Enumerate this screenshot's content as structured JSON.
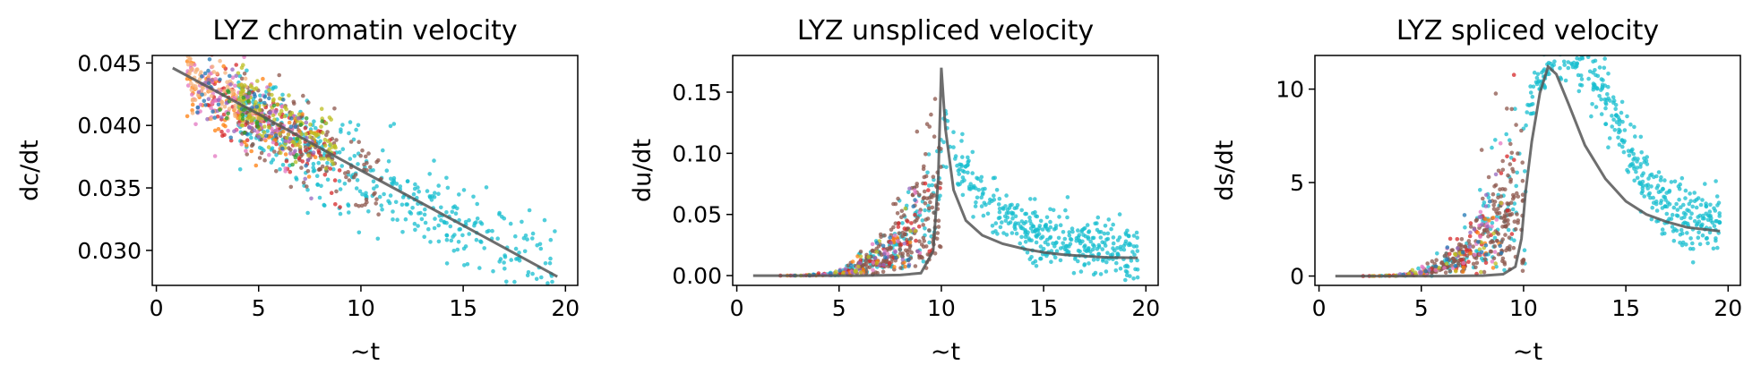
{
  "chart_data": [
    {
      "type": "scatter",
      "title": "LYZ chromatin velocity",
      "xlabel": "~t",
      "ylabel": "dc/dt",
      "xlim": [
        -0.2,
        20.6
      ],
      "ylim": [
        0.0272,
        0.0456
      ],
      "xticks": [
        "0",
        "5",
        "10",
        "15",
        "20"
      ],
      "yticks": [
        "0.030",
        "0.035",
        "0.040",
        "0.045"
      ],
      "grid": false,
      "fit_line": [
        [
          0.8,
          0.0446
        ],
        [
          5,
          0.0409
        ],
        [
          10,
          0.0364
        ],
        [
          15,
          0.032
        ],
        [
          19.6,
          0.0279
        ]
      ],
      "scatter_series": [
        {
          "color": "#17becf",
          "x_range": [
            4,
            19.5
          ],
          "y_center_slope": -0.00089,
          "y_center_intercept": 0.0451,
          "spread": 0.0018,
          "count": 420
        },
        {
          "color": "#8c564b",
          "x_range": [
            4,
            11
          ],
          "y_center_slope": -0.00085,
          "y_center_intercept": 0.0447,
          "spread": 0.0016,
          "count": 170
        },
        {
          "color": "#d62728",
          "x_range": [
            2.5,
            9
          ],
          "y_center_slope": -0.00085,
          "y_center_intercept": 0.0447,
          "spread": 0.0017,
          "count": 90
        },
        {
          "color": "#ff7f0e",
          "x_range": [
            1.5,
            8
          ],
          "y_center_slope": -0.00085,
          "y_center_intercept": 0.0448,
          "spread": 0.0016,
          "count": 70
        },
        {
          "color": "#e377c2",
          "x_range": [
            1.5,
            7
          ],
          "y_center_slope": -0.00085,
          "y_center_intercept": 0.045,
          "spread": 0.0013,
          "count": 110
        },
        {
          "color": "#f5b27a",
          "x_range": [
            1.5,
            5
          ],
          "y_center_slope": -0.00085,
          "y_center_intercept": 0.0452,
          "spread": 0.0009,
          "count": 90
        },
        {
          "color": "#bcbd22",
          "x_range": [
            4,
            9
          ],
          "y_center_slope": -0.00085,
          "y_center_intercept": 0.0455,
          "spread": 0.0012,
          "count": 140
        },
        {
          "color": "#9467bd",
          "x_range": [
            2,
            8
          ],
          "y_center_slope": -0.00085,
          "y_center_intercept": 0.0448,
          "spread": 0.0016,
          "count": 45
        },
        {
          "color": "#1f77b4",
          "x_range": [
            2,
            8
          ],
          "y_center_slope": -0.00085,
          "y_center_intercept": 0.0448,
          "spread": 0.0016,
          "count": 35
        },
        {
          "color": "#2ca02c",
          "x_range": [
            3,
            9
          ],
          "y_center_slope": -0.00085,
          "y_center_intercept": 0.0448,
          "spread": 0.0015,
          "count": 30
        }
      ]
    },
    {
      "type": "scatter",
      "title": "LYZ unspliced velocity",
      "xlabel": "~t",
      "ylabel": "du/dt",
      "xlim": [
        -0.2,
        20.6
      ],
      "ylim": [
        -0.008,
        0.18
      ],
      "xticks": [
        "0",
        "5",
        "10",
        "15",
        "20"
      ],
      "yticks": [
        "0.00",
        "0.05",
        "0.10",
        "0.15"
      ],
      "grid": false,
      "fit_line": [
        [
          0.8,
          0.0
        ],
        [
          3,
          0.0
        ],
        [
          6,
          0.0
        ],
        [
          8,
          0.0005
        ],
        [
          9,
          0.002
        ],
        [
          9.6,
          0.02
        ],
        [
          9.85,
          0.08
        ],
        [
          10.0,
          0.17
        ],
        [
          10.2,
          0.12
        ],
        [
          10.6,
          0.07
        ],
        [
          11.2,
          0.045
        ],
        [
          12,
          0.033
        ],
        [
          13,
          0.026
        ],
        [
          14,
          0.022
        ],
        [
          15,
          0.019
        ],
        [
          16,
          0.017
        ],
        [
          17,
          0.016
        ],
        [
          18,
          0.015
        ],
        [
          19.6,
          0.0145
        ]
      ],
      "scatter_series": [
        {
          "color": "#17becf",
          "x_range": [
            3,
            19.6
          ],
          "count": 520
        },
        {
          "color": "#8c564b",
          "x_range": [
            5,
            10
          ],
          "count": 220
        },
        {
          "color": "#d62728",
          "x_range": [
            2,
            10
          ],
          "count": 40
        },
        {
          "color": "#ff7f0e",
          "x_range": [
            2,
            9
          ],
          "count": 25
        },
        {
          "color": "#e377c2",
          "x_range": [
            2,
            9
          ],
          "count": 25
        },
        {
          "color": "#9467bd",
          "x_range": [
            2,
            9
          ],
          "count": 20
        },
        {
          "color": "#bcbd22",
          "x_range": [
            2,
            9
          ],
          "count": 20
        },
        {
          "color": "#1f77b4",
          "x_range": [
            2,
            9
          ],
          "count": 15
        }
      ]
    },
    {
      "type": "scatter",
      "title": "LYZ spliced velocity",
      "xlabel": "~t",
      "ylabel": "ds/dt",
      "xlim": [
        -0.2,
        20.6
      ],
      "ylim": [
        -0.5,
        11.8
      ],
      "xticks": [
        "0",
        "5",
        "10",
        "15",
        "20"
      ],
      "yticks": [
        "0",
        "5",
        "10"
      ],
      "grid": false,
      "fit_line": [
        [
          0.8,
          0.0
        ],
        [
          3,
          0.0
        ],
        [
          6,
          0.0
        ],
        [
          8,
          0.02
        ],
        [
          9,
          0.1
        ],
        [
          9.6,
          0.5
        ],
        [
          9.9,
          2.0
        ],
        [
          10.1,
          4.5
        ],
        [
          10.4,
          7.2
        ],
        [
          10.8,
          9.8
        ],
        [
          11.2,
          11.2
        ],
        [
          11.6,
          10.8
        ],
        [
          12.2,
          9.2
        ],
        [
          13,
          7.0
        ],
        [
          14,
          5.2
        ],
        [
          15,
          4.0
        ],
        [
          16,
          3.3
        ],
        [
          17,
          2.9
        ],
        [
          18,
          2.6
        ],
        [
          19.6,
          2.4
        ]
      ],
      "scatter_series": [
        {
          "color": "#17becf",
          "x_range": [
            3,
            19.6
          ],
          "count": 520
        },
        {
          "color": "#8c564b",
          "x_range": [
            5,
            10
          ],
          "count": 220
        },
        {
          "color": "#d62728",
          "x_range": [
            2,
            10
          ],
          "count": 40
        },
        {
          "color": "#ff7f0e",
          "x_range": [
            2,
            9
          ],
          "count": 25
        },
        {
          "color": "#e377c2",
          "x_range": [
            2,
            9
          ],
          "count": 25
        },
        {
          "color": "#9467bd",
          "x_range": [
            2,
            9
          ],
          "count": 20
        },
        {
          "color": "#bcbd22",
          "x_range": [
            2,
            9
          ],
          "count": 20
        },
        {
          "color": "#1f77b4",
          "x_range": [
            2,
            9
          ],
          "count": 15
        }
      ]
    }
  ],
  "colors": {
    "fit_line": "#555555",
    "axes": "#000000"
  }
}
